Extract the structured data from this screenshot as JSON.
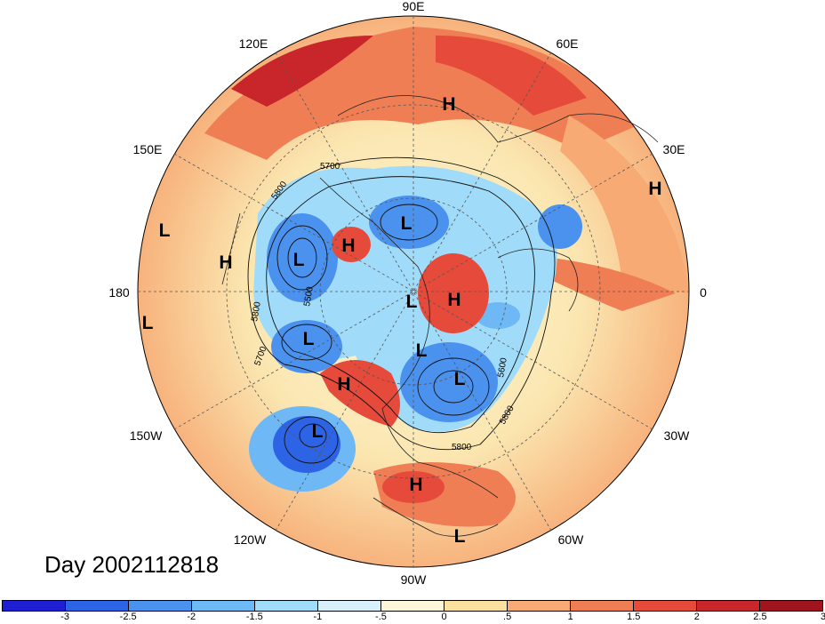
{
  "title": "Day 2002112818",
  "longitude_labels": [
    "90E",
    "60E",
    "30E",
    "0",
    "30W",
    "60W",
    "90W",
    "120W",
    "150W",
    "180",
    "150E",
    "120E"
  ],
  "pressure_centers": [
    {
      "label": "H"
    },
    {
      "label": "H"
    },
    {
      "label": "H"
    },
    {
      "label": "H"
    },
    {
      "label": "H"
    },
    {
      "label": "H"
    },
    {
      "label": "H"
    },
    {
      "label": "L"
    },
    {
      "label": "L"
    },
    {
      "label": "L"
    },
    {
      "label": "L"
    },
    {
      "label": "L"
    },
    {
      "label": "L"
    },
    {
      "label": "L"
    },
    {
      "label": "L"
    },
    {
      "label": "L"
    },
    {
      "label": "L"
    }
  ],
  "contour_labels": [
    "5700",
    "5800",
    "5500",
    "5800",
    "5700",
    "5600",
    "5800",
    "5800"
  ],
  "colorbar": {
    "colors": [
      "#1e1ed2",
      "#2d64e6",
      "#4b91ee",
      "#6eb8f5",
      "#a0dcfa",
      "#d7f0fb",
      "#fcf7d8",
      "#fbe1a0",
      "#f7aa73",
      "#f07e55",
      "#e54a3a",
      "#c8262a",
      "#a0141e"
    ],
    "tick_labels": [
      "-3",
      "-2.5",
      "-2",
      "-1.5",
      "-1",
      "-.5",
      "0",
      ".5",
      "1",
      "1.5",
      "2",
      "2.5",
      "3"
    ]
  },
  "colors": {
    "positive_anomaly": "#e54a3a",
    "negative_anomaly": "#4b91ee",
    "neutral": "#fcf7d8"
  }
}
